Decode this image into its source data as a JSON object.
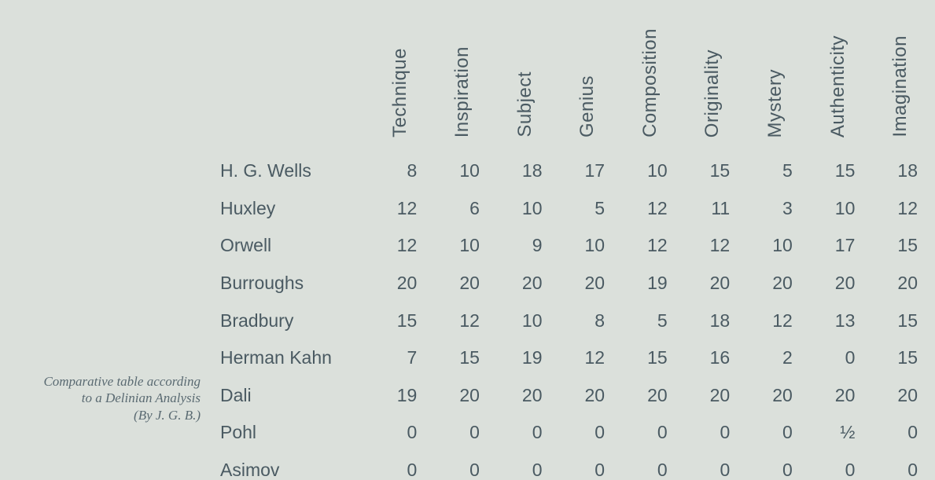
{
  "caption": {
    "line1": "Comparative table according",
    "line2": "to a Delinian Analysis",
    "line3": "(By J. G. B.)"
  },
  "table": {
    "type": "table",
    "background_color": "#dbe0db",
    "text_color": "#4a5a62",
    "header_fontsize": 24,
    "body_fontsize": 23,
    "caption_fontsize": 17,
    "columns": [
      "Technique",
      "Inspiration",
      "Subject",
      "Genius",
      "Composition",
      "Originality",
      "Mystery",
      "Authenticity",
      "Imagination"
    ],
    "row_labels": [
      "H. G. Wells",
      "Huxley",
      "Orwell",
      "Burroughs",
      "Bradbury",
      "Herman Kahn",
      "Dali",
      "Pohl",
      "Asimov"
    ],
    "rows": [
      [
        "8",
        "10",
        "18",
        "17",
        "10",
        "15",
        "5",
        "15",
        "18"
      ],
      [
        "12",
        "6",
        "10",
        "5",
        "12",
        "11",
        "3",
        "10",
        "12"
      ],
      [
        "12",
        "10",
        "9",
        "10",
        "12",
        "12",
        "10",
        "17",
        "15"
      ],
      [
        "20",
        "20",
        "20",
        "20",
        "19",
        "20",
        "20",
        "20",
        "20"
      ],
      [
        "15",
        "12",
        "10",
        "8",
        "5",
        "18",
        "12",
        "13",
        "15"
      ],
      [
        "7",
        "15",
        "19",
        "12",
        "15",
        "16",
        "2",
        "0",
        "15"
      ],
      [
        "19",
        "20",
        "20",
        "20",
        "20",
        "20",
        "20",
        "20",
        "20"
      ],
      [
        "0",
        "0",
        "0",
        "0",
        "0",
        "0",
        "0",
        "½",
        "0"
      ],
      [
        "0",
        "0",
        "0",
        "0",
        "0",
        "0",
        "0",
        "0",
        "0"
      ]
    ],
    "column_align": "right",
    "rowlabel_align": "left"
  }
}
